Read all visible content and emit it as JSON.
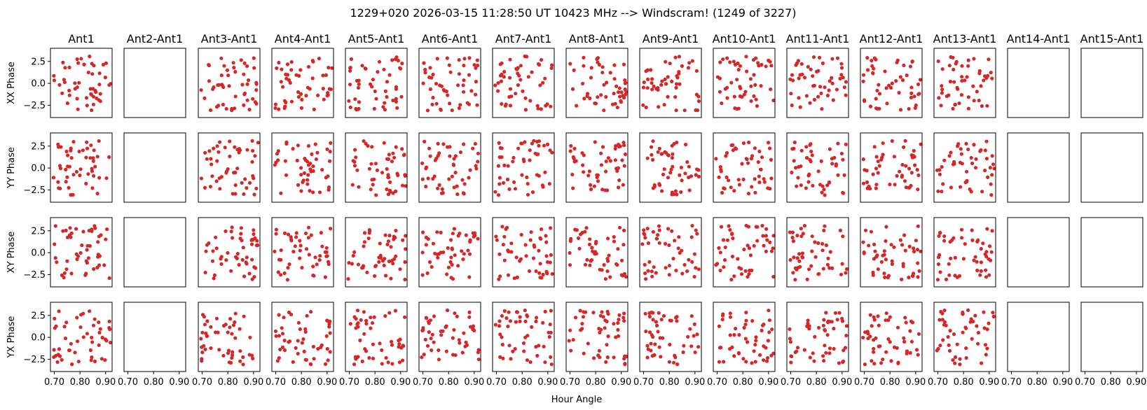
{
  "chart_data": {
    "type": "scatter",
    "title": "1229+020  2026-03-15 11:28:50 UT  10423 MHz  --> Windscram! (1249 of 3227)",
    "xlabel": "Hour Angle",
    "row_labels": [
      "XX Phase",
      "YY Phase",
      "XY Phase",
      "YX Phase"
    ],
    "column_titles": [
      "Ant1",
      "Ant2-Ant1",
      "Ant3-Ant1",
      "Ant4-Ant1",
      "Ant5-Ant1",
      "Ant6-Ant1",
      "Ant7-Ant1",
      "Ant8-Ant1",
      "Ant9-Ant1",
      "Ant10-Ant1",
      "Ant11-Ant1",
      "Ant12-Ant1",
      "Ant13-Ant1",
      "Ant14-Ant1",
      "Ant15-Ant1"
    ],
    "xlim": [
      0.685,
      0.925
    ],
    "ylim": [
      -3.9,
      4.0
    ],
    "x_ticks": [
      0.7,
      0.8,
      0.9
    ],
    "x_tick_labels": [
      "0.70",
      "0.80",
      "0.90"
    ],
    "y_ticks": [
      2.5,
      0.0,
      -2.5
    ],
    "y_tick_labels": [
      "2.5",
      "0.0",
      "−2.5"
    ],
    "marker_color": "#d62728",
    "points_per_panel": 50,
    "empty_columns": [
      1,
      13,
      14
    ],
    "grid": false,
    "series_note": "Phase values scattered approximately uniformly between -3.14 and 3.14 rad in each populated panel"
  }
}
